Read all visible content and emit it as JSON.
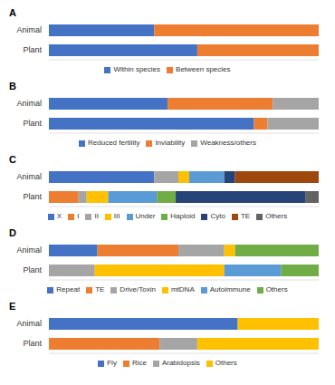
{
  "chart_data": [
    {
      "type": "bar",
      "title": "A",
      "orientation": "horizontal",
      "stacked": true,
      "tick_labels": "y",
      "legend": "bottom",
      "categories": [
        "Animal",
        "Plant"
      ],
      "xlim": [
        0,
        100
      ],
      "series": [
        {
          "name": "Within species",
          "color": "#4472c4",
          "values": [
            39,
            55
          ]
        },
        {
          "name": "Between species",
          "color": "#ed7d31",
          "values": [
            61,
            45
          ]
        }
      ]
    },
    {
      "type": "bar",
      "title": "B",
      "orientation": "horizontal",
      "stacked": true,
      "tick_labels": "y",
      "legend": "bottom",
      "categories": [
        "Animal",
        "Plant"
      ],
      "xlim": [
        0,
        100
      ],
      "series": [
        {
          "name": "Reduced fertility",
          "color": "#4472c4",
          "values": [
            44,
            76
          ]
        },
        {
          "name": "Inviability",
          "color": "#ed7d31",
          "values": [
            39,
            5
          ]
        },
        {
          "name": "Weakness/others",
          "color": "#a5a5a5",
          "values": [
            17,
            19
          ]
        }
      ]
    },
    {
      "type": "bar",
      "title": "C",
      "orientation": "horizontal",
      "stacked": true,
      "tick_labels": "y",
      "legend": "bottom",
      "categories": [
        "Animal",
        "Plant"
      ],
      "xlim": [
        0,
        100
      ],
      "series": [
        {
          "name": "X",
          "color": "#4472c4",
          "values": [
            39,
            0
          ]
        },
        {
          "name": "I",
          "color": "#ed7d31",
          "values": [
            0,
            11
          ]
        },
        {
          "name": "II",
          "color": "#a5a5a5",
          "values": [
            9,
            3
          ]
        },
        {
          "name": "III",
          "color": "#ffc000",
          "values": [
            4,
            8
          ]
        },
        {
          "name": "Under",
          "color": "#5b9bd5",
          "values": [
            13,
            18
          ]
        },
        {
          "name": "Haploid",
          "color": "#70ad47",
          "values": [
            0,
            7
          ]
        },
        {
          "name": "Cyto",
          "color": "#264478",
          "values": [
            4,
            48
          ]
        },
        {
          "name": "TE",
          "color": "#9e480e",
          "values": [
            31,
            0
          ]
        },
        {
          "name": "Others",
          "color": "#636363",
          "values": [
            0,
            5
          ]
        }
      ]
    },
    {
      "type": "bar",
      "title": "D",
      "orientation": "horizontal",
      "stacked": true,
      "tick_labels": "y",
      "legend": "bottom",
      "categories": [
        "Animal",
        "Plant"
      ],
      "xlim": [
        0,
        100
      ],
      "series": [
        {
          "name": "Repeat",
          "color": "#4472c4",
          "values": [
            18,
            0
          ]
        },
        {
          "name": "TE",
          "color": "#ed7d31",
          "values": [
            30,
            0
          ]
        },
        {
          "name": "Drive/Toxin",
          "color": "#a5a5a5",
          "values": [
            17,
            17
          ]
        },
        {
          "name": "mtDNA",
          "color": "#ffc000",
          "values": [
            4,
            48
          ]
        },
        {
          "name": "Autoimmune",
          "color": "#5b9bd5",
          "values": [
            0,
            21
          ]
        },
        {
          "name": "Others",
          "color": "#70ad47",
          "values": [
            31,
            14
          ]
        }
      ]
    },
    {
      "type": "bar",
      "title": "E",
      "orientation": "horizontal",
      "stacked": true,
      "tick_labels": "y",
      "legend": "bottom",
      "categories": [
        "Animal",
        "Plant"
      ],
      "xlim": [
        0,
        100
      ],
      "series": [
        {
          "name": "Fly",
          "color": "#4472c4",
          "values": [
            70,
            0
          ]
        },
        {
          "name": "Rice",
          "color": "#ed7d31",
          "values": [
            0,
            41
          ]
        },
        {
          "name": "Arabidopsis",
          "color": "#a5a5a5",
          "values": [
            0,
            14
          ]
        },
        {
          "name": "Others",
          "color": "#ffc000",
          "values": [
            30,
            45
          ]
        }
      ]
    }
  ]
}
